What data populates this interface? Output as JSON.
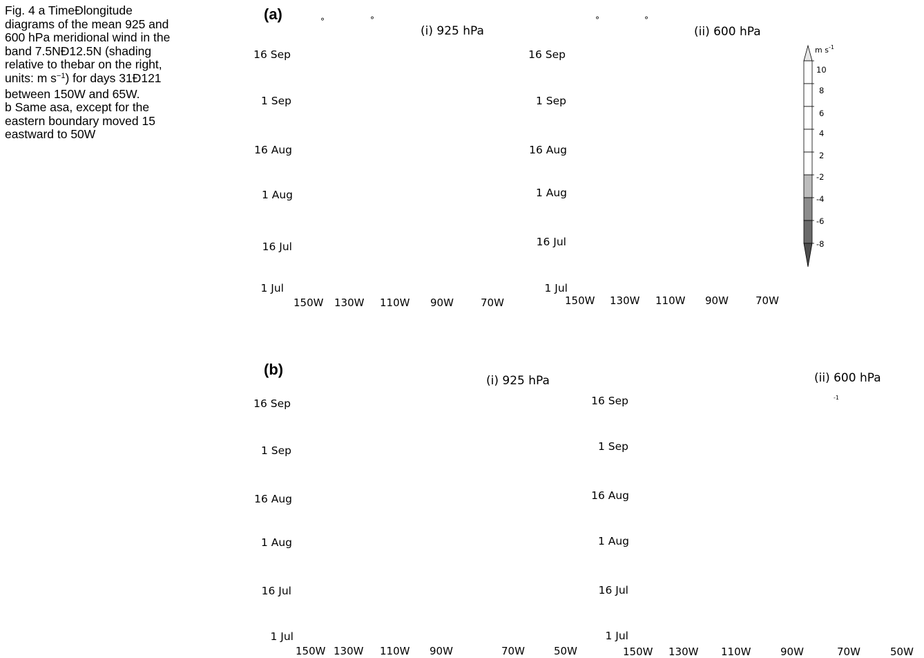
{
  "caption": {
    "lines": [
      "Fig. 4  a TimeÐlongitude",
      "diagrams of the mean 925 and",
      "600 hPa meridional wind in the",
      "band 7.5NÐ12.5N (shading",
      "relative to thebar on the right,"
    ],
    "units_line_pre": "units: m s",
    "units_line_sup": "−1",
    "units_line_post": ") for days 31Ð121",
    "lines2": [
      "between 150W and 65W.",
      "b Same asa, except for the",
      "eastern boundary moved 15",
      "eastward to 50W"
    ]
  },
  "panel_a": {
    "label": "(a)",
    "deg_mark": "°",
    "sub_i": {
      "title": "(i) 925 hPa"
    },
    "sub_ii": {
      "title": "(ii) 600 hPa"
    }
  },
  "panel_b": {
    "label": "(b)",
    "sub_i": {
      "title": "(i) 925 hPa"
    },
    "sub_ii": {
      "title": "(ii) 600 hPa"
    },
    "stray_sup": "-1"
  },
  "dates": [
    "16 Sep",
    "1 Sep",
    "16 Aug",
    "1 Aug",
    "16 Jul",
    "1 Jul"
  ],
  "lon_a": [
    "150W",
    "130W",
    "110W",
    "90W",
    "70W"
  ],
  "lon_b": [
    "150W",
    "130W",
    "110W",
    "90W",
    "70W",
    "50W"
  ],
  "colorbar": {
    "unit_base": "m s",
    "unit_sup": "-1",
    "ticks": [
      "10",
      "8",
      "6",
      "4",
      "2",
      "-2",
      "-4",
      "-6",
      "-8"
    ],
    "segment_colors": [
      "#e6e6e6",
      "#ffffff",
      "#ffffff",
      "#ffffff",
      "#ffffff",
      "#ffffff",
      "#bdbdbd",
      "#8c8c8c",
      "#6a6a6a",
      "#4d4d4d"
    ],
    "outline_color": "#000000"
  }
}
